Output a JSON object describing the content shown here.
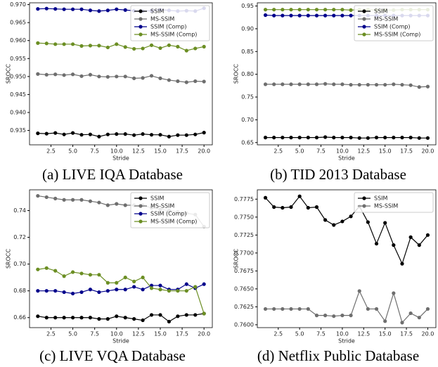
{
  "chart_data": [
    {
      "type": "line",
      "title": "(a) LIVE IQA Database",
      "xlabel": "Stride",
      "ylabel": "SROCC",
      "legend": "upper right",
      "x": [
        1,
        2,
        3,
        4,
        5,
        6,
        7,
        8,
        9,
        10,
        11,
        12,
        13,
        14,
        15,
        16,
        17,
        18,
        19,
        20
      ],
      "xlim": [
        0.05,
        20.95
      ],
      "ylim": [
        0.931,
        0.9705
      ],
      "xticks": [
        2.5,
        {
          "value": 5,
          "label": "5.0"
        },
        7.5,
        {
          "value": 10,
          "label": "10.0"
        },
        12.5,
        {
          "value": 15,
          "label": "15.0"
        },
        17.5,
        {
          "value": 20,
          "label": "20.0"
        }
      ],
      "yticks": [
        0.935,
        {
          "value": 0.94,
          "label": "0.940"
        },
        0.945,
        {
          "value": 0.95,
          "label": "0.950"
        },
        0.955,
        {
          "value": 0.96,
          "label": "0.960"
        },
        0.965,
        {
          "value": 0.97,
          "label": "0.970"
        }
      ],
      "series": [
        {
          "name": "SSIM",
          "color": "#000000",
          "values": [
            0.9342,
            0.9341,
            0.9343,
            0.9339,
            0.9343,
            0.9338,
            0.9339,
            0.9333,
            0.9339,
            0.934,
            0.934,
            0.9337,
            0.934,
            0.9338,
            0.9338,
            0.9333,
            0.9337,
            0.9337,
            0.9339,
            0.9344
          ]
        },
        {
          "name": "MS-SSIM",
          "color": "#6e6e6e",
          "values": [
            0.9507,
            0.9505,
            0.9506,
            0.9504,
            0.9506,
            0.9501,
            0.9505,
            0.95,
            0.9499,
            0.95,
            0.95,
            0.9495,
            0.9496,
            0.9502,
            0.9495,
            0.949,
            0.9487,
            0.9484,
            0.9487,
            0.9486
          ]
        },
        {
          "name": "SSIM (Comp)",
          "color": "#00008b",
          "values": [
            0.9688,
            0.9689,
            0.9688,
            0.9687,
            0.9687,
            0.9687,
            0.9684,
            0.9682,
            0.9684,
            0.9687,
            0.9685,
            0.9683,
            0.9682,
            0.9683,
            0.9686,
            0.9684,
            0.9682,
            0.9683,
            0.9682,
            0.969
          ]
        },
        {
          "name": "MS-SSIM (Comp)",
          "color": "#6b8e23",
          "values": [
            0.9593,
            0.9592,
            0.959,
            0.959,
            0.959,
            0.9585,
            0.9586,
            0.9586,
            0.9581,
            0.959,
            0.9582,
            0.9577,
            0.9578,
            0.9587,
            0.9579,
            0.9587,
            0.9583,
            0.9572,
            0.9578,
            0.9583
          ]
        }
      ]
    },
    {
      "type": "line",
      "title": "(b) TID 2013 Database",
      "xlabel": "Stride",
      "ylabel": "SROCC",
      "legend": "upper right",
      "x": [
        1,
        2,
        3,
        4,
        5,
        6,
        7,
        8,
        9,
        10,
        11,
        12,
        13,
        14,
        15,
        16,
        17,
        18,
        19,
        20
      ],
      "xlim": [
        0.05,
        20.95
      ],
      "ylim": [
        0.645,
        0.957
      ],
      "xticks": [
        2.5,
        {
          "value": 5,
          "label": "5.0"
        },
        7.5,
        {
          "value": 10,
          "label": "10.0"
        },
        12.5,
        {
          "value": 15,
          "label": "15.0"
        },
        17.5,
        {
          "value": 20,
          "label": "20.0"
        }
      ],
      "yticks": [
        0.65,
        {
          "value": 0.7,
          "label": "0.70"
        },
        0.75,
        {
          "value": 0.8,
          "label": "0.80"
        },
        0.85,
        {
          "value": 0.9,
          "label": "0.90"
        },
        0.95
      ],
      "series": [
        {
          "name": "SSIM",
          "color": "#000000",
          "values": [
            0.661,
            0.661,
            0.661,
            0.661,
            0.661,
            0.661,
            0.661,
            0.662,
            0.661,
            0.661,
            0.661,
            0.66,
            0.66,
            0.661,
            0.661,
            0.661,
            0.661,
            0.661,
            0.66,
            0.66
          ]
        },
        {
          "name": "MS-SSIM",
          "color": "#6e6e6e",
          "values": [
            0.778,
            0.778,
            0.778,
            0.778,
            0.778,
            0.778,
            0.778,
            0.779,
            0.778,
            0.778,
            0.777,
            0.777,
            0.777,
            0.777,
            0.777,
            0.778,
            0.777,
            0.776,
            0.772,
            0.773
          ]
        },
        {
          "name": "SSIM (Comp)",
          "color": "#00008b",
          "values": [
            0.93,
            0.929,
            0.929,
            0.929,
            0.929,
            0.929,
            0.929,
            0.929,
            0.929,
            0.929,
            0.929,
            0.929,
            0.929,
            0.929,
            0.929,
            0.929,
            0.929,
            0.929,
            0.929,
            0.929
          ]
        },
        {
          "name": "MS-SSIM (Comp)",
          "color": "#6b8e23",
          "values": [
            0.942,
            0.942,
            0.942,
            0.942,
            0.942,
            0.942,
            0.942,
            0.942,
            0.942,
            0.942,
            0.941,
            0.942,
            0.942,
            0.941,
            0.941,
            0.941,
            0.942,
            0.942,
            0.942,
            0.942
          ]
        }
      ]
    },
    {
      "type": "line",
      "title": "(c) LIVE VQA Database",
      "xlabel": "Stride",
      "ylabel": "SROCC",
      "legend": "upper right",
      "x": [
        1,
        2,
        3,
        4,
        5,
        6,
        7,
        8,
        9,
        10,
        11,
        12,
        13,
        14,
        15,
        16,
        17,
        18,
        19,
        20
      ],
      "xlim": [
        0.05,
        20.95
      ],
      "ylim": [
        0.6525,
        0.7555
      ],
      "xticks": [
        2.5,
        {
          "value": 5,
          "label": "5.0"
        },
        7.5,
        {
          "value": 10,
          "label": "10.0"
        },
        12.5,
        {
          "value": 15,
          "label": "15.0"
        },
        17.5,
        {
          "value": 20,
          "label": "20.0"
        }
      ],
      "yticks": [
        0.66,
        0.68,
        {
          "value": 0.7,
          "label": "0.70"
        },
        0.72,
        0.74
      ],
      "series": [
        {
          "name": "SSIM",
          "color": "#000000",
          "values": [
            0.661,
            0.66,
            0.66,
            0.66,
            0.66,
            0.66,
            0.66,
            0.659,
            0.659,
            0.661,
            0.66,
            0.659,
            0.658,
            0.662,
            0.662,
            0.657,
            0.661,
            0.662,
            0.662,
            0.663
          ]
        },
        {
          "name": "MS-SSIM",
          "color": "#6e6e6e",
          "values": [
            0.751,
            0.75,
            0.749,
            0.748,
            0.748,
            0.748,
            0.747,
            0.746,
            0.744,
            0.745,
            0.744,
            0.744,
            0.744,
            0.742,
            0.741,
            0.74,
            0.739,
            0.738,
            0.737,
            0.728
          ]
        },
        {
          "name": "SSIM (Comp)",
          "color": "#00008b",
          "values": [
            0.68,
            0.68,
            0.68,
            0.679,
            0.678,
            0.679,
            0.681,
            0.679,
            0.68,
            0.681,
            0.681,
            0.683,
            0.681,
            0.684,
            0.684,
            0.681,
            0.681,
            0.685,
            0.682,
            0.685
          ]
        },
        {
          "name": "MS-SSIM (Comp)",
          "color": "#6b8e23",
          "values": [
            0.696,
            0.697,
            0.695,
            0.691,
            0.694,
            0.693,
            0.692,
            0.692,
            0.686,
            0.686,
            0.69,
            0.687,
            0.69,
            0.682,
            0.681,
            0.68,
            0.68,
            0.68,
            0.683,
            0.663
          ]
        }
      ]
    },
    {
      "type": "line",
      "title": "(d) Netflix Public Database",
      "xlabel": "Stride",
      "ylabel": "SROCC",
      "legend": "upper right",
      "x": [
        1,
        2,
        3,
        4,
        5,
        6,
        7,
        8,
        9,
        10,
        11,
        12,
        13,
        14,
        15,
        16,
        17,
        18,
        19,
        20
      ],
      "xlim": [
        0.05,
        20.95
      ],
      "ylim": [
        0.7596,
        0.7788
      ],
      "xticks": [
        2.5,
        {
          "value": 5,
          "label": "5.0"
        },
        7.5,
        {
          "value": 10,
          "label": "10.0"
        },
        12.5,
        {
          "value": 15,
          "label": "15.0"
        },
        17.5,
        {
          "value": 20,
          "label": "20.0"
        }
      ],
      "yticks": [
        {
          "value": 0.76,
          "label": "0.7600"
        },
        0.7625,
        {
          "value": 0.765,
          "label": "0.7650"
        },
        0.7675,
        {
          "value": 0.77,
          "label": "0.7700"
        },
        0.7725,
        {
          "value": 0.775,
          "label": "0.7750"
        },
        0.7775
      ],
      "series": [
        {
          "name": "SSIM",
          "color": "#000000",
          "values": [
            0.7777,
            0.7764,
            0.7763,
            0.7764,
            0.7779,
            0.7763,
            0.7764,
            0.7746,
            0.7739,
            0.7744,
            0.7751,
            0.7765,
            0.7743,
            0.7713,
            0.7742,
            0.7711,
            0.7685,
            0.7722,
            0.7711,
            0.7725
          ]
        },
        {
          "name": "MS-SSIM",
          "color": "#6e6e6e",
          "values": [
            0.7622,
            0.7622,
            0.7622,
            0.7622,
            0.7622,
            0.7622,
            0.7613,
            0.7613,
            0.7612,
            0.7613,
            0.7613,
            0.7647,
            0.7622,
            0.7622,
            0.7605,
            0.7644,
            0.7603,
            0.7616,
            0.761,
            0.7622
          ]
        }
      ]
    }
  ]
}
